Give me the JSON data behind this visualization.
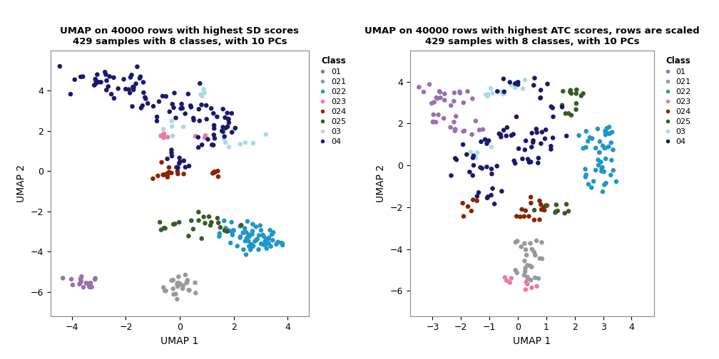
{
  "title1": "UMAP on 40000 rows with highest SD scores\n429 samples with 8 classes, with 10 PCs",
  "title2": "UMAP on 40000 rows with highest ATC scores, rows are scaled\n429 samples with 8 classes, with 10 PCs",
  "xlabel": "UMAP 1",
  "ylabel": "UMAP 2",
  "classes": [
    "01",
    "021",
    "022",
    "023",
    "024",
    "025",
    "03",
    "04"
  ],
  "colors": {
    "01": "#9970AB",
    "021": "#999999",
    "022": "#2196C8",
    "023": "#E87CA0",
    "024": "#8B2500",
    "025": "#3A5A28",
    "03": "#ADD8E6",
    "04": "#191970"
  },
  "xlim1": [
    -4.8,
    4.8
  ],
  "ylim1": [
    -7.2,
    6.0
  ],
  "xticks1": [
    -4,
    -2,
    0,
    2,
    4
  ],
  "yticks1": [
    -6,
    -4,
    -2,
    0,
    2,
    4
  ],
  "xlim2": [
    -3.8,
    4.8
  ],
  "ylim2": [
    -7.2,
    5.5
  ],
  "xticks2": [
    -3,
    -2,
    -1,
    0,
    1,
    2,
    3,
    4
  ],
  "yticks2": [
    -6,
    -4,
    -2,
    0,
    2,
    4
  ],
  "marker_size": 22,
  "bg_color": "#FFFFFF",
  "panel_bg": "#FFFFFF",
  "border_color": "#888888"
}
